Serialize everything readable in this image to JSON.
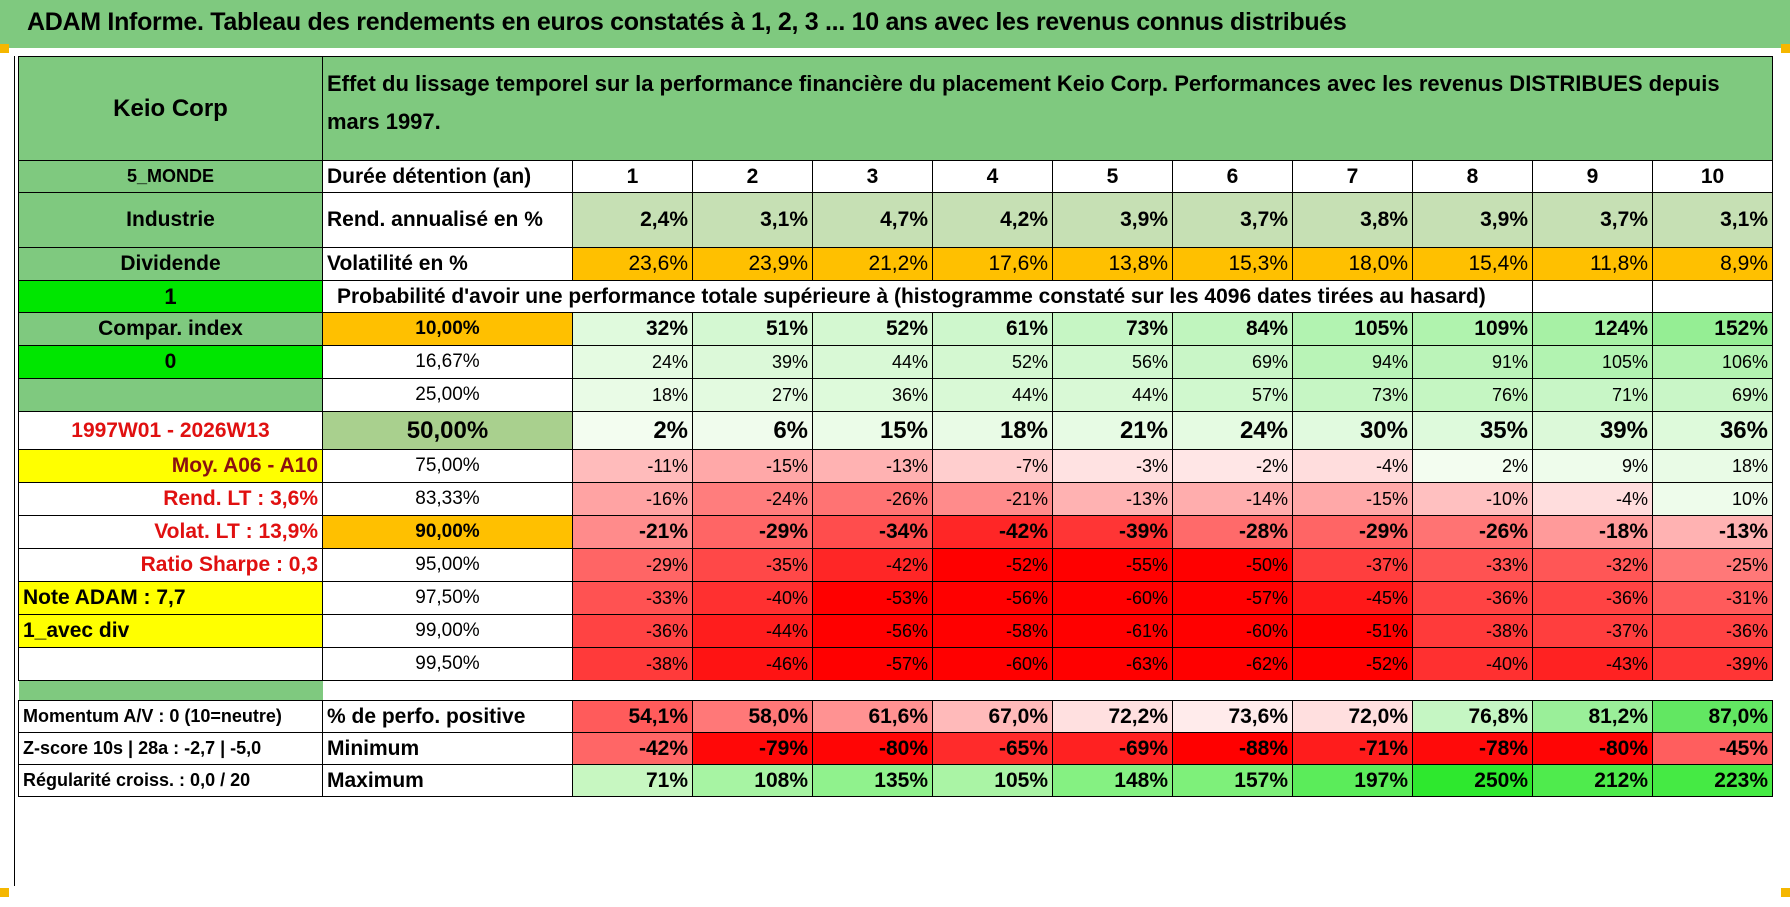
{
  "title": "ADAM Informe. Tableau des rendements en euros constatés à 1, 2, 3 ... 10 ans avec les revenus connus distribués",
  "header": {
    "company": "Keio Corp",
    "description": "Effet du lissage temporel sur la performance financière du placement Keio Corp. Performances avec les revenus DISTRIBUES depuis mars 1997."
  },
  "left": {
    "region": "5_MONDE",
    "sector": "Industrie",
    "dividend_label": "Dividende",
    "dividend_flag": "1",
    "compar_index": "Compar. index",
    "compar_flag": "0",
    "period": "1997W01 - 2026W13",
    "moy": "Moy. A06 - A10",
    "rend_lt": "Rend. LT :   3,6%",
    "volat_lt": "Volat. LT :   13,9%",
    "sharpe": "Ratio Sharpe :    0,3",
    "note": "Note ADAM : 7,7",
    "div_mode": "1_avec div",
    "momentum": "Momentum A/V : 0 (10=neutre)",
    "zscore": "Z-score 10s | 28a : -2,7 | -5,0",
    "regularite": "Régularité croiss. : 0,0 / 20"
  },
  "duration": {
    "label": "Durée détention (an)",
    "years": [
      "1",
      "2",
      "3",
      "4",
      "5",
      "6",
      "7",
      "8",
      "9",
      "10"
    ]
  },
  "rend": {
    "label": "Rend. annualisé en %",
    "values": [
      "2,4%",
      "3,1%",
      "4,7%",
      "4,2%",
      "3,9%",
      "3,7%",
      "3,8%",
      "3,9%",
      "3,7%",
      "3,1%"
    ]
  },
  "volat": {
    "label": "Volatilité en %",
    "values": [
      "23,6%",
      "23,9%",
      "21,2%",
      "17,6%",
      "13,8%",
      "15,3%",
      "18,0%",
      "15,4%",
      "11,8%",
      "8,9%"
    ]
  },
  "prob_title": "Probabilité d'avoir une performance totale supérieure à (histogramme constaté sur les 4096 dates tirées au hasard)",
  "percentiles": [
    {
      "label": "10,00%",
      "values": [
        "32%",
        "51%",
        "52%",
        "61%",
        "73%",
        "84%",
        "105%",
        "109%",
        "124%",
        "152%"
      ]
    },
    {
      "label": "16,67%",
      "values": [
        "24%",
        "39%",
        "44%",
        "52%",
        "56%",
        "69%",
        "94%",
        "91%",
        "105%",
        "106%"
      ]
    },
    {
      "label": "25,00%",
      "values": [
        "18%",
        "27%",
        "36%",
        "44%",
        "44%",
        "57%",
        "73%",
        "76%",
        "71%",
        "69%"
      ]
    },
    {
      "label": "50,00%",
      "values": [
        "2%",
        "6%",
        "15%",
        "18%",
        "21%",
        "24%",
        "30%",
        "35%",
        "39%",
        "36%"
      ]
    },
    {
      "label": "75,00%",
      "values": [
        "-11%",
        "-15%",
        "-13%",
        "-7%",
        "-3%",
        "-2%",
        "-4%",
        "2%",
        "9%",
        "18%"
      ]
    },
    {
      "label": "83,33%",
      "values": [
        "-16%",
        "-24%",
        "-26%",
        "-21%",
        "-13%",
        "-14%",
        "-15%",
        "-10%",
        "-4%",
        "10%"
      ]
    },
    {
      "label": "90,00%",
      "values": [
        "-21%",
        "-29%",
        "-34%",
        "-42%",
        "-39%",
        "-28%",
        "-29%",
        "-26%",
        "-18%",
        "-13%"
      ]
    },
    {
      "label": "95,00%",
      "values": [
        "-29%",
        "-35%",
        "-42%",
        "-52%",
        "-55%",
        "-50%",
        "-37%",
        "-33%",
        "-32%",
        "-25%"
      ]
    },
    {
      "label": "97,50%",
      "values": [
        "-33%",
        "-40%",
        "-53%",
        "-56%",
        "-60%",
        "-57%",
        "-45%",
        "-36%",
        "-36%",
        "-31%"
      ]
    },
    {
      "label": "99,00%",
      "values": [
        "-36%",
        "-44%",
        "-56%",
        "-58%",
        "-61%",
        "-60%",
        "-51%",
        "-38%",
        "-37%",
        "-36%"
      ]
    },
    {
      "label": "99,50%",
      "values": [
        "-38%",
        "-46%",
        "-57%",
        "-60%",
        "-63%",
        "-62%",
        "-52%",
        "-40%",
        "-43%",
        "-39%"
      ]
    }
  ],
  "positive": {
    "label": "% de perfo. positive",
    "values": [
      "54,1%",
      "58,0%",
      "61,6%",
      "67,0%",
      "72,2%",
      "73,6%",
      "72,0%",
      "76,8%",
      "81,2%",
      "87,0%"
    ]
  },
  "minimum": {
    "label": "Minimum",
    "values": [
      "-42%",
      "-79%",
      "-80%",
      "-65%",
      "-69%",
      "-88%",
      "-71%",
      "-78%",
      "-80%",
      "-45%"
    ]
  },
  "maximum": {
    "label": "Maximum",
    "values": [
      "71%",
      "108%",
      "135%",
      "105%",
      "148%",
      "157%",
      "197%",
      "250%",
      "212%",
      "223%"
    ]
  },
  "colors": {
    "header_green": "#7fc97f",
    "bright_green": "#00e600",
    "yellow": "#ffff00",
    "orange": "#ffc000",
    "red_text": "#e01010",
    "rend_fill": "#c6e0b4",
    "median_fill": "#a9d08e"
  }
}
